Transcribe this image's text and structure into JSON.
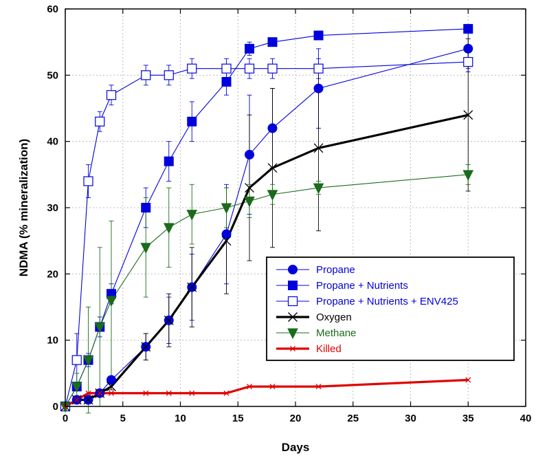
{
  "chart_data": {
    "type": "line",
    "title": "",
    "xlabel": "Days",
    "ylabel": "NDMA (% mineralization)",
    "xlim": [
      0,
      40
    ],
    "ylim": [
      0,
      60
    ],
    "xticks": [
      0,
      5,
      10,
      15,
      20,
      25,
      30,
      35,
      40
    ],
    "yticks": [
      0,
      10,
      20,
      30,
      40,
      50,
      60
    ],
    "grid": true,
    "legend_position": "bottom-right",
    "series": [
      {
        "name": "Propane",
        "color": "#0000dd",
        "marker": "filled-circle",
        "line_width": "thin",
        "x": [
          0,
          1,
          2,
          3,
          4,
          7,
          9,
          11,
          14,
          16,
          18,
          22,
          35
        ],
        "y": [
          0,
          1,
          1,
          2,
          4,
          9,
          13,
          18,
          26,
          38,
          42,
          48,
          54
        ],
        "error": [
          0,
          0.3,
          0.5,
          0.5,
          0.5,
          2,
          3.5,
          5,
          7.5,
          9,
          6,
          6,
          3
        ]
      },
      {
        "name": "Propane + Nutrients",
        "color": "#0000dd",
        "marker": "filled-square",
        "line_width": "thin",
        "x": [
          0,
          1,
          2,
          3,
          4,
          7,
          9,
          11,
          14,
          16,
          18,
          22,
          35
        ],
        "y": [
          0,
          3,
          7,
          12,
          17,
          30,
          37,
          43,
          49,
          54,
          55,
          56,
          57
        ],
        "error": [
          0,
          0.5,
          1,
          1.5,
          1.5,
          3,
          3,
          3,
          2,
          1,
          0.5,
          0.5,
          0.5
        ]
      },
      {
        "name": "Propane + Nutrients + ENV425",
        "color": "#0000dd",
        "marker": "open-square",
        "line_width": "thin",
        "x": [
          0,
          1,
          2,
          3,
          4,
          7,
          9,
          11,
          14,
          16,
          18,
          22,
          35
        ],
        "y": [
          0,
          7,
          34,
          43,
          47,
          50,
          50,
          51,
          51,
          51,
          51,
          51,
          52
        ],
        "error": [
          0,
          4,
          2.5,
          1.5,
          1.5,
          1.5,
          1.5,
          1.5,
          1.5,
          1.5,
          1.5,
          1.5,
          1.5
        ]
      },
      {
        "name": "Oxygen",
        "color": "#000000",
        "marker": "x",
        "line_width": "thick",
        "x": [
          0,
          1,
          2,
          3,
          4,
          7,
          9,
          11,
          14,
          16,
          18,
          22,
          35
        ],
        "y": [
          0,
          1,
          1,
          2,
          3,
          9,
          13,
          18,
          25,
          33,
          36,
          39,
          44
        ],
        "error": [
          0,
          0.3,
          0.3,
          0.5,
          0.5,
          2,
          4,
          6,
          8,
          11,
          12,
          12.5,
          11.5
        ]
      },
      {
        "name": "Methane",
        "color": "#1a6b1a",
        "marker": "filled-triangle-down",
        "line_width": "thin",
        "x": [
          0,
          1,
          2,
          3,
          4,
          7,
          9,
          11,
          14,
          16,
          18,
          22,
          35
        ],
        "y": [
          0,
          3,
          7,
          12,
          16,
          24,
          27,
          29,
          30,
          31,
          32,
          33,
          35
        ],
        "error": [
          0,
          2,
          8,
          12,
          12,
          7.5,
          6,
          4.5,
          3,
          2.5,
          1.5,
          1,
          1.5
        ]
      },
      {
        "name": "Killed",
        "color": "#e00000",
        "marker": "small-x",
        "line_width": "thick",
        "x": [
          0,
          1,
          2,
          3,
          4,
          7,
          9,
          11,
          14,
          16,
          18,
          22,
          35
        ],
        "y": [
          0,
          1,
          2,
          2,
          2,
          2,
          2,
          2,
          2,
          3,
          3,
          3,
          4
        ],
        "error": [
          0,
          0,
          0,
          0,
          0,
          0,
          0,
          0,
          0,
          0,
          0,
          0,
          0
        ]
      }
    ]
  }
}
